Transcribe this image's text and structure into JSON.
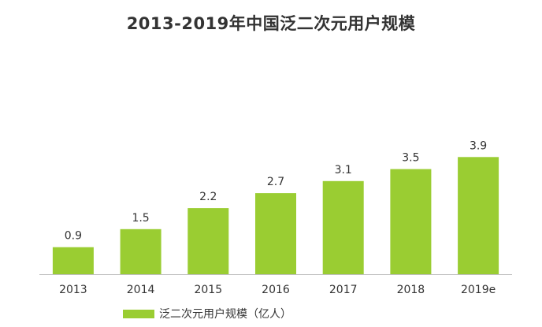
{
  "chart_data": {
    "type": "bar",
    "title": "2013-2019年中国泛二次元用户规模",
    "categories": [
      "2013",
      "2014",
      "2015",
      "2016",
      "2017",
      "2018",
      "2019e"
    ],
    "series": [
      {
        "name": "泛二次元用户规模（亿人）",
        "values": [
          0.9,
          1.5,
          2.2,
          2.7,
          3.1,
          3.5,
          3.9
        ],
        "color": "#9acd32"
      }
    ],
    "xlabel": "",
    "ylabel": "",
    "ylim": [
      0,
      4.8
    ],
    "grid": false,
    "legend_position": "bottom-left",
    "data_labels": [
      "0.9",
      "1.5",
      "2.2",
      "2.7",
      "3.1",
      "3.5",
      "3.9"
    ]
  }
}
